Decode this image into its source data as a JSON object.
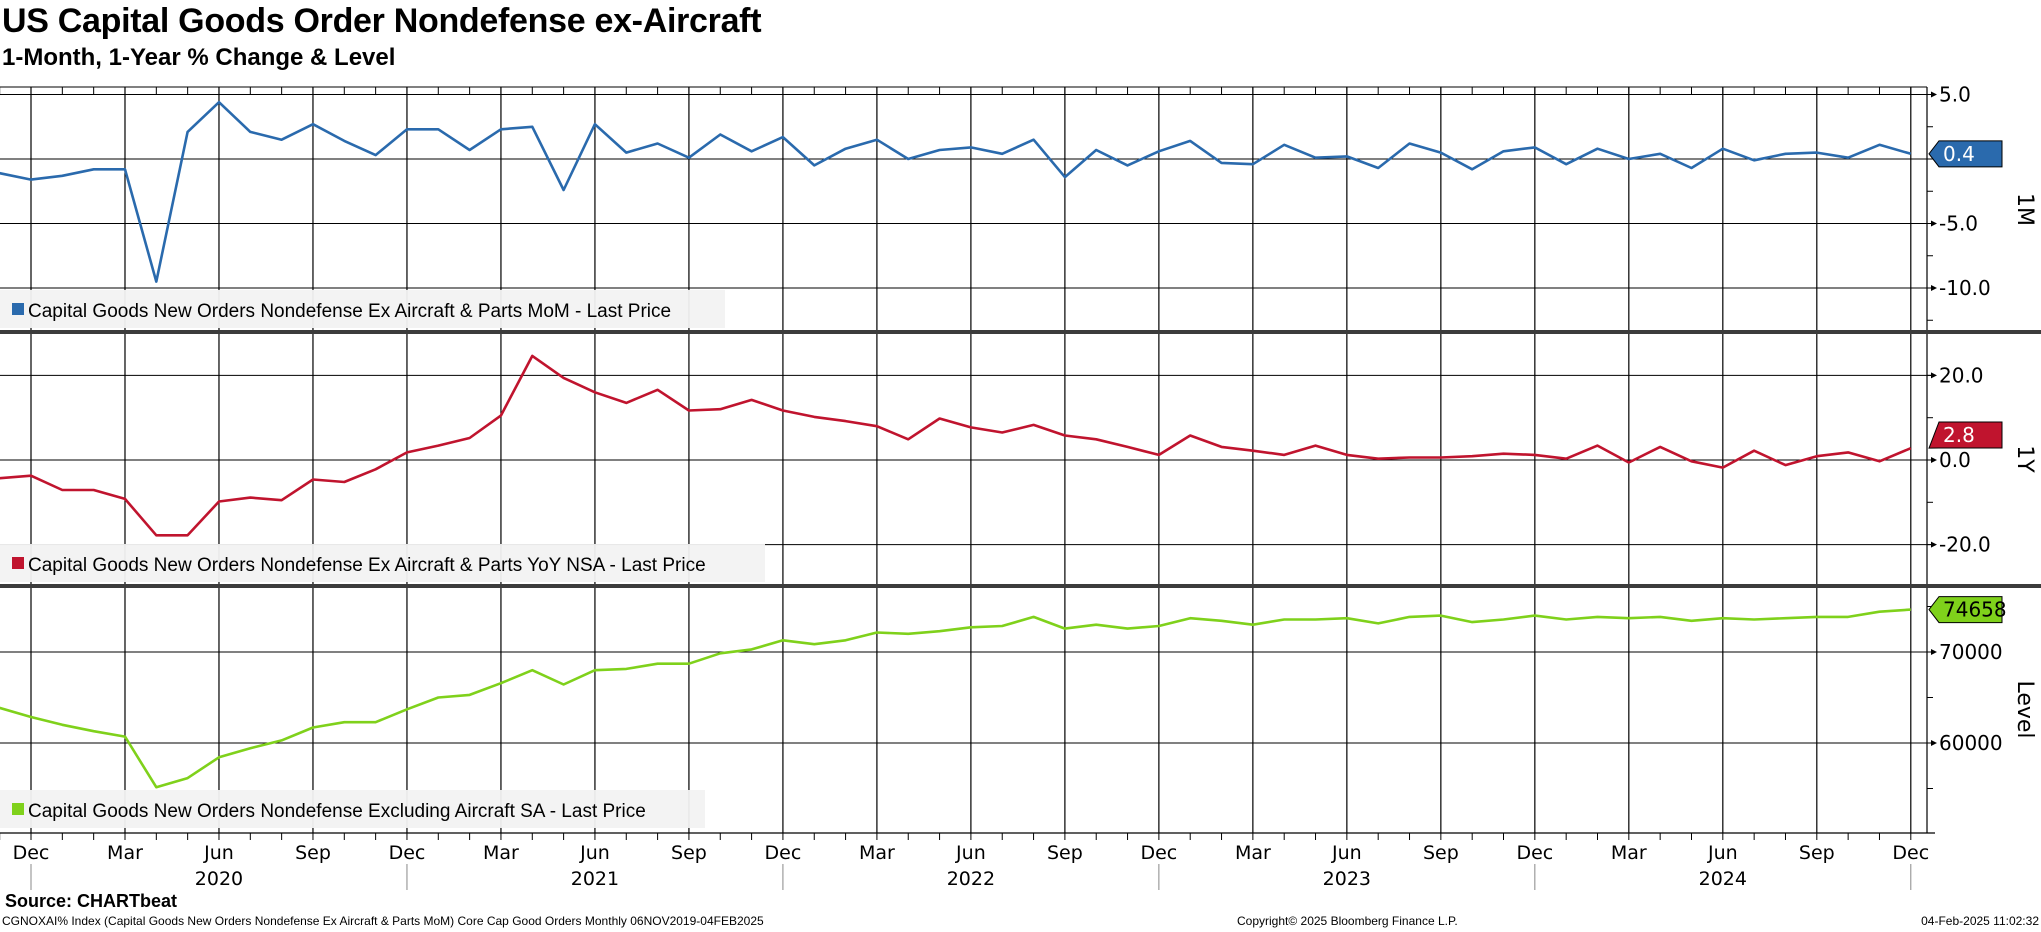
{
  "header": {
    "title": "US Capital Goods Order Nondefense ex-Aircraft",
    "subtitle": "1-Month, 1-Year % Change & Level"
  },
  "footer": {
    "source": "Source: CHARTbeat",
    "description": "CGNOXAI% Index (Capital Goods New Orders Nondefense Ex Aircraft & Parts MoM) Core Cap Good Orders  Monthly 06NOV2019-04FEB2025",
    "copyright": "Copyright© 2025 Bloomberg Finance L.P.",
    "timestamp": "04-Feb-2025 11:02:32"
  },
  "chart_data": {
    "type": "line",
    "x_start": "2019-11",
    "frequency": "Monthly",
    "x_tick_labels": [
      "Dec",
      "Mar",
      "Jun",
      "Sep",
      "Dec",
      "Mar",
      "Jun",
      "Sep",
      "Dec",
      "Mar",
      "Jun",
      "Sep",
      "Dec",
      "Mar",
      "Jun",
      "Sep",
      "Dec",
      "Mar",
      "Jun",
      "Sep",
      "Dec"
    ],
    "x_year_labels": [
      "2020",
      "2021",
      "2022",
      "2023",
      "2024"
    ],
    "panels": [
      {
        "axis_label": "1M",
        "legend": "Capital Goods New Orders Nondefense Ex Aircraft & Parts MoM - Last Price",
        "color": "#2a6aad",
        "last_value_label": "0.4",
        "badge_text_color": "#ffffff",
        "ylim": [
          -12.5,
          6.0
        ],
        "y_ticks": [
          {
            "value": 5,
            "label": "5.0"
          },
          {
            "value": -5,
            "label": "-5.0"
          },
          {
            "value": -10,
            "label": "-10.0"
          }
        ],
        "gridlines_at": [
          5,
          0,
          -5,
          -10
        ],
        "values": [
          -1.1,
          -1.6,
          -1.3,
          -0.8,
          -0.8,
          -9.5,
          2.1,
          4.4,
          2.1,
          1.5,
          2.7,
          1.4,
          0.3,
          2.3,
          2.3,
          0.7,
          2.3,
          2.5,
          -2.4,
          2.7,
          0.5,
          1.2,
          0.1,
          1.9,
          0.6,
          1.7,
          -0.5,
          0.8,
          1.5,
          0,
          0.7,
          0.9,
          0.4,
          1.5,
          -1.4,
          0.7,
          -0.5,
          0.6,
          1.4,
          -0.3,
          -0.4,
          1.1,
          0.1,
          0.2,
          -0.7,
          1.2,
          0.5,
          -0.8,
          0.6,
          0.9,
          -0.4,
          0.8,
          0,
          0.4,
          -0.7,
          0.8,
          -0.1,
          0.4,
          0.5,
          0.1,
          1.1,
          0.4
        ]
      },
      {
        "axis_label": "1Y",
        "legend": "Capital Goods New Orders Nondefense Ex Aircraft & Parts YoY NSA - Last Price",
        "color": "#c0142e",
        "last_value_label": "2.8",
        "badge_text_color": "#ffffff",
        "ylim": [
          -30,
          28
        ],
        "y_ticks": [
          {
            "value": 20,
            "label": "20.0"
          },
          {
            "value": 0,
            "label": "0.0"
          },
          {
            "value": -20,
            "label": "-20.0"
          }
        ],
        "gridlines_at": [
          20,
          0,
          -20
        ],
        "values": [
          -4.3,
          -3.7,
          -7.1,
          -7.1,
          -9.2,
          -17.8,
          -17.8,
          -9.8,
          -8.9,
          -9.5,
          -4.6,
          -5.2,
          -2.2,
          1.8,
          3.4,
          5.2,
          10.5,
          24.6,
          19.4,
          16,
          13.5,
          16.6,
          11.7,
          12,
          14.2,
          11.7,
          10.2,
          9.2,
          8,
          4.9,
          9.8,
          7.7,
          6.5,
          8.3,
          5.8,
          4.9,
          3.1,
          1.2,
          5.8,
          3.1,
          2.2,
          1.2,
          3.4,
          1.2,
          0.3,
          0.6,
          0.6,
          0.9,
          1.5,
          1.2,
          0.3,
          3.4,
          -0.6,
          3.1,
          -0.3,
          -1.8,
          2.2,
          -1.2,
          0.9,
          1.8,
          -0.3,
          2.8
        ]
      },
      {
        "axis_label": "Level",
        "legend": "Capital Goods New Orders Nondefense Excluding Aircraft SA - Last Price",
        "color": "#7fd11b",
        "last_value_label": "74658",
        "badge_text_color": "#000000",
        "ylim": [
          50000,
          77000
        ],
        "y_ticks": [
          {
            "value": 70000,
            "label": "70000"
          },
          {
            "value": 60000,
            "label": "60000"
          }
        ],
        "gridlines_at": [
          70000,
          60000
        ],
        "values": [
          63860,
          62860,
          62000,
          61300,
          60700,
          55140,
          56140,
          58430,
          59430,
          60290,
          61700,
          62290,
          62290,
          63700,
          65000,
          65290,
          66570,
          68000,
          66430,
          68000,
          68140,
          68710,
          68710,
          69860,
          70290,
          71290,
          70860,
          71290,
          72140,
          72000,
          72290,
          72710,
          72860,
          73860,
          72570,
          73000,
          72570,
          72860,
          73710,
          73430,
          73000,
          73570,
          73570,
          73710,
          73140,
          73860,
          74000,
          73290,
          73570,
          74000,
          73570,
          73860,
          73710,
          73860,
          73430,
          73710,
          73570,
          73710,
          73860,
          73860,
          74430,
          74658
        ]
      }
    ]
  }
}
